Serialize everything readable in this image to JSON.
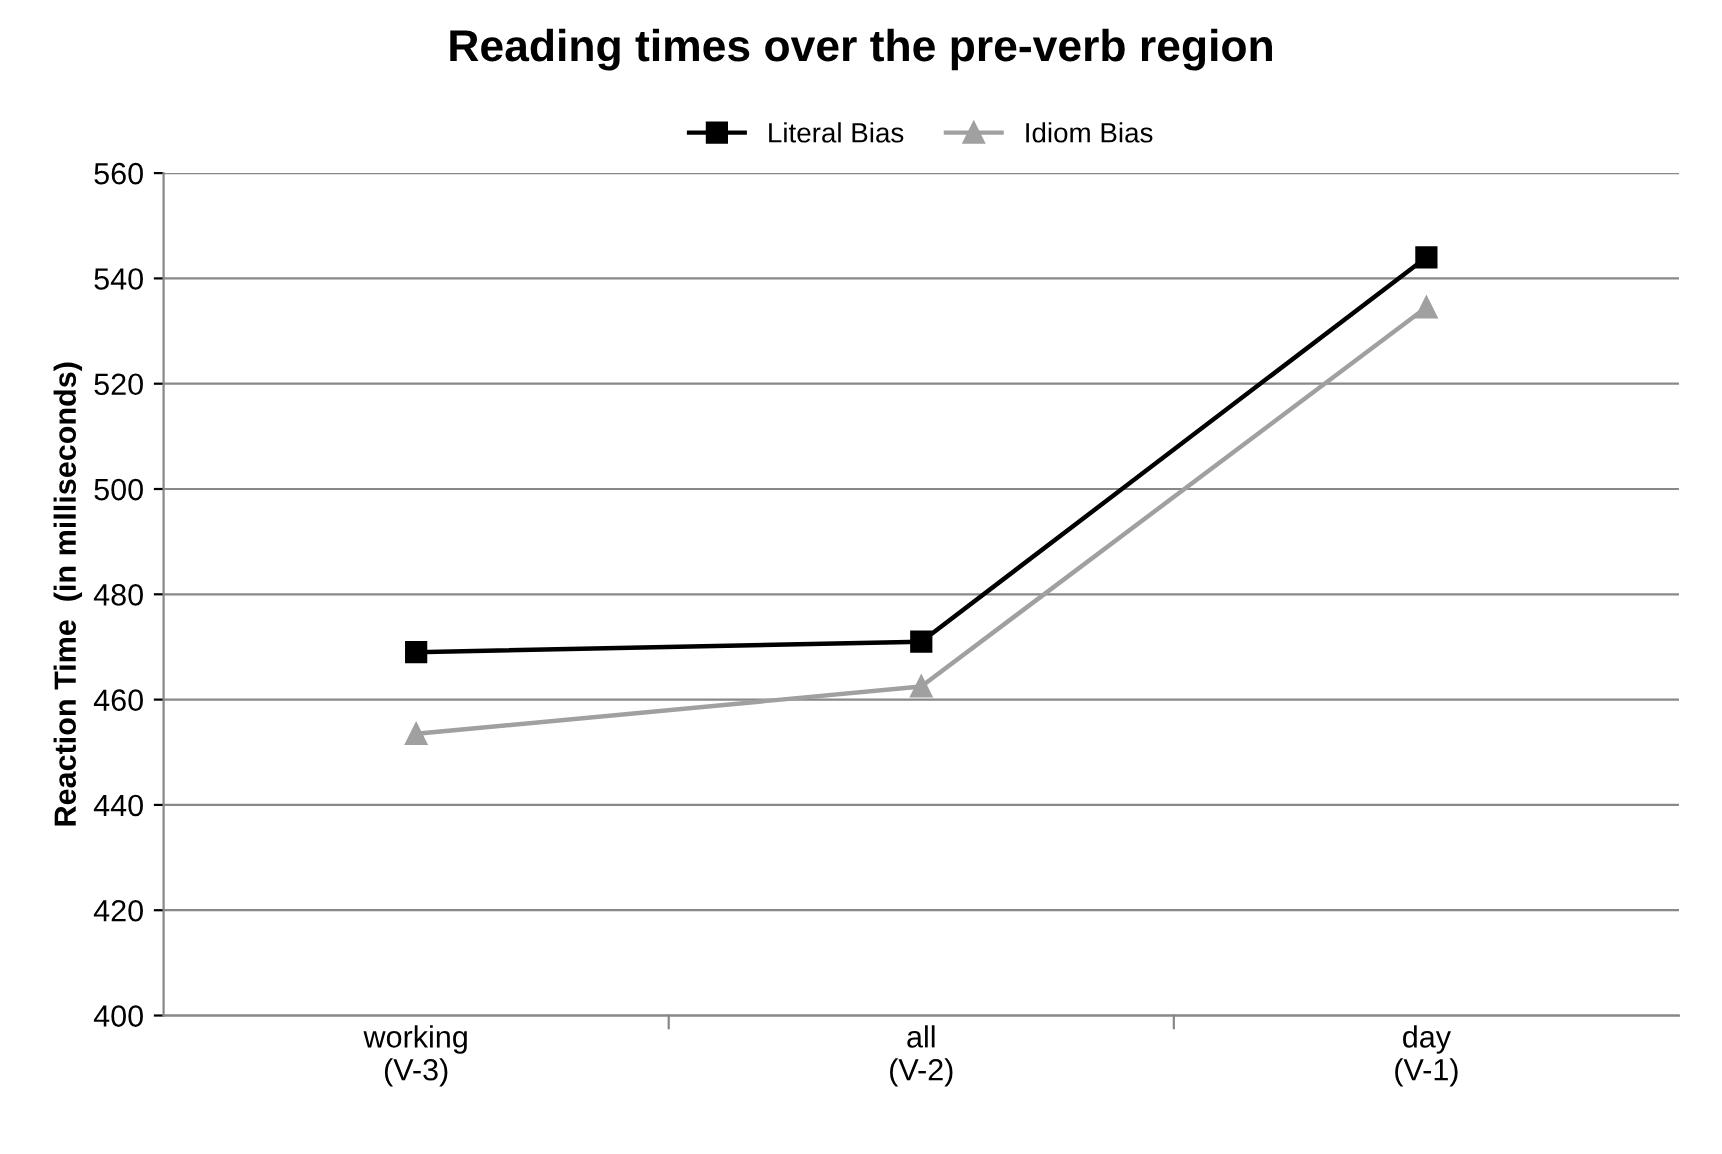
{
  "chart_data": {
    "type": "line",
    "title": "Reading times over the pre-verb region",
    "ylabel": "Reaction Time  (in milliseconds)",
    "categories": [
      "working\n(V-3)",
      "all\n(V-2)",
      "day\n(V-1)"
    ],
    "series": [
      {
        "name": "Literal Bias",
        "color": "#000000",
        "marker": "square",
        "values": [
          469,
          471,
          544
        ]
      },
      {
        "name": "Idiom Bias",
        "color": "#a0a0a0",
        "marker": "triangle",
        "values": [
          453.5,
          462.5,
          534.5
        ]
      }
    ],
    "ylim": [
      400,
      560
    ],
    "yticks": [
      400,
      420,
      440,
      460,
      480,
      500,
      520,
      540,
      560
    ],
    "grid": "y",
    "legend": "top",
    "line_style": "solid"
  }
}
